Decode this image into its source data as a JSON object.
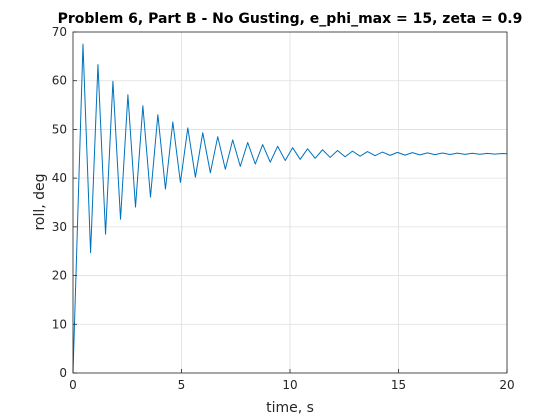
{
  "chart_data": {
    "type": "line",
    "title": "Problem 6, Part B - No Gusting, e_phi_max = 15, zeta = 0.9",
    "x_label": "time, s",
    "y_label": "roll, deg",
    "x": [
      0,
      0.46,
      0.81,
      1.15,
      1.5,
      1.84,
      2.19,
      2.53,
      2.88,
      3.22,
      3.57,
      3.91,
      4.26,
      4.6,
      4.95,
      5.29,
      5.64,
      5.98,
      6.33,
      6.67,
      7.02,
      7.36,
      7.71,
      8.05,
      8.4,
      8.74,
      9.09,
      9.43,
      9.78,
      10.12,
      10.47,
      10.81,
      11.16,
      11.5,
      11.85,
      12.19,
      12.54,
      12.88,
      13.23,
      13.57,
      13.92,
      14.26,
      14.61,
      14.95,
      15.3,
      15.64,
      15.99,
      16.33,
      16.68,
      17.02,
      17.37,
      17.71,
      18.06,
      18.4,
      18.75,
      19.09,
      19.44,
      19.78,
      20
    ],
    "series": [
      {
        "name": "roll",
        "color": "#0072bd",
        "values": [
          0,
          67.5,
          24.7,
          63.31,
          28.49,
          59.89,
          31.57,
          57.12,
          34.07,
          54.86,
          36.11,
          53.02,
          37.77,
          51.52,
          39.12,
          50.31,
          40.21,
          49.32,
          41.11,
          48.51,
          41.83,
          47.86,
          42.42,
          47.32,
          42.9,
          46.89,
          43.29,
          46.54,
          43.61,
          46.25,
          43.87,
          46.02,
          44.08,
          45.83,
          44.25,
          45.67,
          44.39,
          45.55,
          44.51,
          45.45,
          44.6,
          45.36,
          44.67,
          45.29,
          44.73,
          45.24,
          44.78,
          45.19,
          44.82,
          45.16,
          44.86,
          45.13,
          44.88,
          45.1,
          44.91,
          45.09,
          44.92,
          45.07,
          45
        ]
      }
    ],
    "xlim": [
      0,
      20
    ],
    "xticks": [
      0,
      5,
      10,
      15,
      20
    ],
    "ylim": [
      0,
      70
    ],
    "yticks": [
      0,
      10,
      20,
      30,
      40,
      50,
      60,
      70
    ],
    "grid": true
  }
}
